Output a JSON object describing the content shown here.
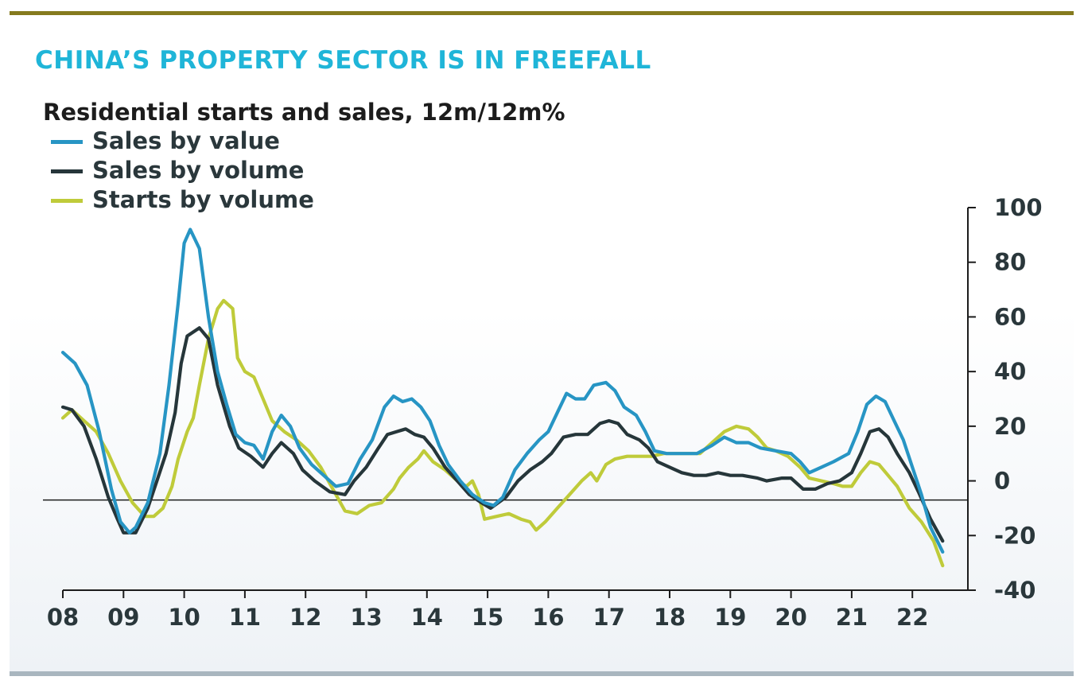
{
  "headline": "CHINA’S PROPERTY SECTOR IS IN FREEFALL",
  "subtitle": "Residential starts and sales, 12m/12m%",
  "colors": {
    "headline": "#1fb5d8",
    "sales_by_value": "#2795c4",
    "sales_by_volume": "#26363a",
    "starts_by_volume": "#bfcb3a",
    "top_rule": "#857a1e",
    "bottom_rule": "#a9b6bf"
  },
  "chart_data": {
    "type": "line",
    "title": "Residential starts and sales, 12m/12m%",
    "xlabel": "",
    "ylabel": "",
    "x_tick_labels": [
      "08",
      "09",
      "10",
      "11",
      "12",
      "13",
      "14",
      "15",
      "16",
      "17",
      "18",
      "19",
      "20",
      "21",
      "22"
    ],
    "xlim": [
      2008,
      2022.9
    ],
    "y_tick_labels": [
      "100",
      "80",
      "60",
      "40",
      "20",
      "0",
      "-20",
      "-40"
    ],
    "yticks": [
      100,
      80,
      60,
      40,
      20,
      0,
      -20,
      -40
    ],
    "ylim": [
      -40,
      100
    ],
    "y_axis_side": "right",
    "reference_line_y": -7,
    "grid": false,
    "legend_position": "top-left",
    "series": [
      {
        "name": "Sales by value",
        "color_key": "sales_by_value",
        "points": [
          [
            2008.0,
            47
          ],
          [
            2008.2,
            43
          ],
          [
            2008.4,
            35
          ],
          [
            2008.6,
            18
          ],
          [
            2008.8,
            -3
          ],
          [
            2008.95,
            -15
          ],
          [
            2009.1,
            -19
          ],
          [
            2009.2,
            -17
          ],
          [
            2009.4,
            -8
          ],
          [
            2009.6,
            10
          ],
          [
            2009.75,
            35
          ],
          [
            2009.9,
            65
          ],
          [
            2010.0,
            87
          ],
          [
            2010.1,
            92
          ],
          [
            2010.25,
            85
          ],
          [
            2010.4,
            60
          ],
          [
            2010.55,
            40
          ],
          [
            2010.7,
            28
          ],
          [
            2010.85,
            17
          ],
          [
            2011.0,
            14
          ],
          [
            2011.15,
            13
          ],
          [
            2011.3,
            8
          ],
          [
            2011.45,
            18
          ],
          [
            2011.6,
            24
          ],
          [
            2011.75,
            20
          ],
          [
            2011.9,
            12
          ],
          [
            2012.1,
            6
          ],
          [
            2012.3,
            2
          ],
          [
            2012.5,
            -2
          ],
          [
            2012.7,
            -1
          ],
          [
            2012.9,
            8
          ],
          [
            2013.1,
            15
          ],
          [
            2013.3,
            27
          ],
          [
            2013.45,
            31
          ],
          [
            2013.6,
            29
          ],
          [
            2013.75,
            30
          ],
          [
            2013.9,
            27
          ],
          [
            2014.05,
            22
          ],
          [
            2014.2,
            13
          ],
          [
            2014.35,
            6
          ],
          [
            2014.55,
            0
          ],
          [
            2014.75,
            -5
          ],
          [
            2014.95,
            -8
          ],
          [
            2015.1,
            -9
          ],
          [
            2015.25,
            -6
          ],
          [
            2015.45,
            4
          ],
          [
            2015.65,
            10
          ],
          [
            2015.85,
            15
          ],
          [
            2016.0,
            18
          ],
          [
            2016.15,
            25
          ],
          [
            2016.3,
            32
          ],
          [
            2016.45,
            30
          ],
          [
            2016.6,
            30
          ],
          [
            2016.75,
            35
          ],
          [
            2016.95,
            36
          ],
          [
            2017.1,
            33
          ],
          [
            2017.25,
            27
          ],
          [
            2017.45,
            24
          ],
          [
            2017.6,
            18
          ],
          [
            2017.75,
            11
          ],
          [
            2017.95,
            10
          ],
          [
            2018.2,
            10
          ],
          [
            2018.45,
            10
          ],
          [
            2018.7,
            13
          ],
          [
            2018.9,
            16
          ],
          [
            2019.1,
            14
          ],
          [
            2019.3,
            14
          ],
          [
            2019.5,
            12
          ],
          [
            2019.75,
            11
          ],
          [
            2020.0,
            10
          ],
          [
            2020.15,
            7
          ],
          [
            2020.3,
            3
          ],
          [
            2020.5,
            5
          ],
          [
            2020.7,
            7
          ],
          [
            2020.95,
            10
          ],
          [
            2021.1,
            18
          ],
          [
            2021.25,
            28
          ],
          [
            2021.4,
            31
          ],
          [
            2021.55,
            29
          ],
          [
            2021.7,
            22
          ],
          [
            2021.85,
            15
          ],
          [
            2022.0,
            5
          ],
          [
            2022.15,
            -5
          ],
          [
            2022.3,
            -17
          ],
          [
            2022.5,
            -26
          ]
        ]
      },
      {
        "name": "Sales by volume",
        "color_key": "sales_by_volume",
        "points": [
          [
            2008.0,
            27
          ],
          [
            2008.15,
            26
          ],
          [
            2008.35,
            20
          ],
          [
            2008.55,
            8
          ],
          [
            2008.75,
            -6
          ],
          [
            2008.9,
            -14
          ],
          [
            2009.0,
            -19
          ],
          [
            2009.2,
            -19
          ],
          [
            2009.4,
            -10
          ],
          [
            2009.55,
            0
          ],
          [
            2009.7,
            10
          ],
          [
            2009.85,
            25
          ],
          [
            2009.95,
            43
          ],
          [
            2010.05,
            53
          ],
          [
            2010.25,
            56
          ],
          [
            2010.4,
            52
          ],
          [
            2010.55,
            35
          ],
          [
            2010.75,
            20
          ],
          [
            2010.9,
            12
          ],
          [
            2011.1,
            9
          ],
          [
            2011.3,
            5
          ],
          [
            2011.45,
            10
          ],
          [
            2011.6,
            14
          ],
          [
            2011.8,
            10
          ],
          [
            2011.95,
            4
          ],
          [
            2012.15,
            0
          ],
          [
            2012.4,
            -4
          ],
          [
            2012.65,
            -5
          ],
          [
            2012.8,
            0
          ],
          [
            2013.0,
            5
          ],
          [
            2013.2,
            12
          ],
          [
            2013.35,
            17
          ],
          [
            2013.5,
            18
          ],
          [
            2013.65,
            19
          ],
          [
            2013.8,
            17
          ],
          [
            2013.95,
            16
          ],
          [
            2014.1,
            12
          ],
          [
            2014.3,
            5
          ],
          [
            2014.5,
            0
          ],
          [
            2014.7,
            -5
          ],
          [
            2014.9,
            -8
          ],
          [
            2015.05,
            -10
          ],
          [
            2015.3,
            -6
          ],
          [
            2015.5,
            0
          ],
          [
            2015.7,
            4
          ],
          [
            2015.9,
            7
          ],
          [
            2016.05,
            10
          ],
          [
            2016.25,
            16
          ],
          [
            2016.45,
            17
          ],
          [
            2016.65,
            17
          ],
          [
            2016.85,
            21
          ],
          [
            2017.0,
            22
          ],
          [
            2017.15,
            21
          ],
          [
            2017.3,
            17
          ],
          [
            2017.5,
            15
          ],
          [
            2017.65,
            12
          ],
          [
            2017.8,
            7
          ],
          [
            2018.0,
            5
          ],
          [
            2018.2,
            3
          ],
          [
            2018.4,
            2
          ],
          [
            2018.6,
            2
          ],
          [
            2018.8,
            3
          ],
          [
            2019.0,
            2
          ],
          [
            2019.2,
            2
          ],
          [
            2019.45,
            1
          ],
          [
            2019.6,
            0
          ],
          [
            2019.85,
            1
          ],
          [
            2020.0,
            1
          ],
          [
            2020.2,
            -3
          ],
          [
            2020.4,
            -3
          ],
          [
            2020.6,
            -1
          ],
          [
            2020.8,
            0
          ],
          [
            2021.0,
            3
          ],
          [
            2021.15,
            10
          ],
          [
            2021.3,
            18
          ],
          [
            2021.45,
            19
          ],
          [
            2021.6,
            16
          ],
          [
            2021.75,
            10
          ],
          [
            2021.95,
            3
          ],
          [
            2022.1,
            -4
          ],
          [
            2022.3,
            -14
          ],
          [
            2022.5,
            -22
          ]
        ]
      },
      {
        "name": "Starts by volume",
        "color_key": "starts_by_volume",
        "points": [
          [
            2008.0,
            23
          ],
          [
            2008.15,
            26
          ],
          [
            2008.35,
            22
          ],
          [
            2008.55,
            18
          ],
          [
            2008.75,
            10
          ],
          [
            2008.95,
            0
          ],
          [
            2009.15,
            -8
          ],
          [
            2009.35,
            -13
          ],
          [
            2009.5,
            -13
          ],
          [
            2009.65,
            -10
          ],
          [
            2009.8,
            -2
          ],
          [
            2009.9,
            8
          ],
          [
            2010.05,
            18
          ],
          [
            2010.15,
            23
          ],
          [
            2010.25,
            35
          ],
          [
            2010.4,
            52
          ],
          [
            2010.55,
            63
          ],
          [
            2010.65,
            66
          ],
          [
            2010.8,
            63
          ],
          [
            2010.88,
            45
          ],
          [
            2011.0,
            40
          ],
          [
            2011.15,
            38
          ],
          [
            2011.3,
            30
          ],
          [
            2011.45,
            22
          ],
          [
            2011.65,
            18
          ],
          [
            2011.85,
            15
          ],
          [
            2012.05,
            11
          ],
          [
            2012.25,
            5
          ],
          [
            2012.45,
            -3
          ],
          [
            2012.65,
            -11
          ],
          [
            2012.85,
            -12
          ],
          [
            2013.05,
            -9
          ],
          [
            2013.25,
            -8
          ],
          [
            2013.45,
            -3
          ],
          [
            2013.55,
            1
          ],
          [
            2013.7,
            5
          ],
          [
            2013.85,
            8
          ],
          [
            2013.95,
            11
          ],
          [
            2014.1,
            7
          ],
          [
            2014.3,
            4
          ],
          [
            2014.5,
            0
          ],
          [
            2014.65,
            -2
          ],
          [
            2014.75,
            0
          ],
          [
            2014.85,
            -5
          ],
          [
            2014.95,
            -14
          ],
          [
            2015.15,
            -13
          ],
          [
            2015.35,
            -12
          ],
          [
            2015.55,
            -14
          ],
          [
            2015.7,
            -15
          ],
          [
            2015.8,
            -18
          ],
          [
            2015.95,
            -15
          ],
          [
            2016.15,
            -10
          ],
          [
            2016.35,
            -5
          ],
          [
            2016.55,
            0
          ],
          [
            2016.7,
            3
          ],
          [
            2016.8,
            0
          ],
          [
            2016.95,
            6
          ],
          [
            2017.1,
            8
          ],
          [
            2017.3,
            9
          ],
          [
            2017.5,
            9
          ],
          [
            2017.7,
            9
          ],
          [
            2017.9,
            10
          ],
          [
            2018.1,
            10
          ],
          [
            2018.3,
            10
          ],
          [
            2018.5,
            10
          ],
          [
            2018.7,
            14
          ],
          [
            2018.9,
            18
          ],
          [
            2019.1,
            20
          ],
          [
            2019.3,
            19
          ],
          [
            2019.45,
            16
          ],
          [
            2019.6,
            12
          ],
          [
            2019.75,
            11
          ],
          [
            2019.95,
            9
          ],
          [
            2020.15,
            5
          ],
          [
            2020.3,
            1
          ],
          [
            2020.5,
            0
          ],
          [
            2020.7,
            -1
          ],
          [
            2020.85,
            -2
          ],
          [
            2021.0,
            -2
          ],
          [
            2021.15,
            3
          ],
          [
            2021.3,
            7
          ],
          [
            2021.45,
            6
          ],
          [
            2021.6,
            2
          ],
          [
            2021.75,
            -2
          ],
          [
            2021.95,
            -10
          ],
          [
            2022.15,
            -15
          ],
          [
            2022.35,
            -22
          ],
          [
            2022.5,
            -31
          ]
        ]
      }
    ]
  }
}
